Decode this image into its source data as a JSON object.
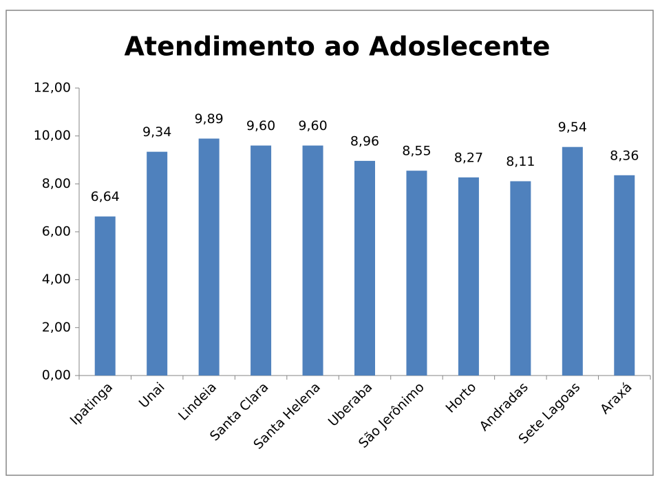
{
  "chart_data": {
    "type": "bar",
    "title": "Atendimento ao Adoslecente",
    "categories": [
      "Ipatinga",
      "Unai",
      "Lindeia",
      "Santa Clara",
      "Santa Helena",
      "Uberaba",
      "São Jerônimo",
      "Horto",
      "Andradas",
      "Sete Lagoas",
      "Araxá"
    ],
    "values": [
      6.64,
      9.34,
      9.89,
      9.6,
      9.6,
      8.96,
      8.55,
      8.27,
      8.11,
      9.54,
      8.36
    ],
    "value_labels": [
      "6,64",
      "9,34",
      "9,89",
      "9,60",
      "9,60",
      "8,96",
      "8,55",
      "8,27",
      "8,11",
      "9,54",
      "8,36"
    ],
    "color": "#4f81bd",
    "ylim": [
      0,
      12
    ],
    "yticks": [
      {
        "value": 0,
        "label": "0,00"
      },
      {
        "value": 2,
        "label": "2,00"
      },
      {
        "value": 4,
        "label": "4,00"
      },
      {
        "value": 6,
        "label": "6,00"
      },
      {
        "value": 8,
        "label": "8,00"
      },
      {
        "value": 10,
        "label": "10,00"
      },
      {
        "value": 12,
        "label": "12,00"
      }
    ],
    "grid": false
  }
}
